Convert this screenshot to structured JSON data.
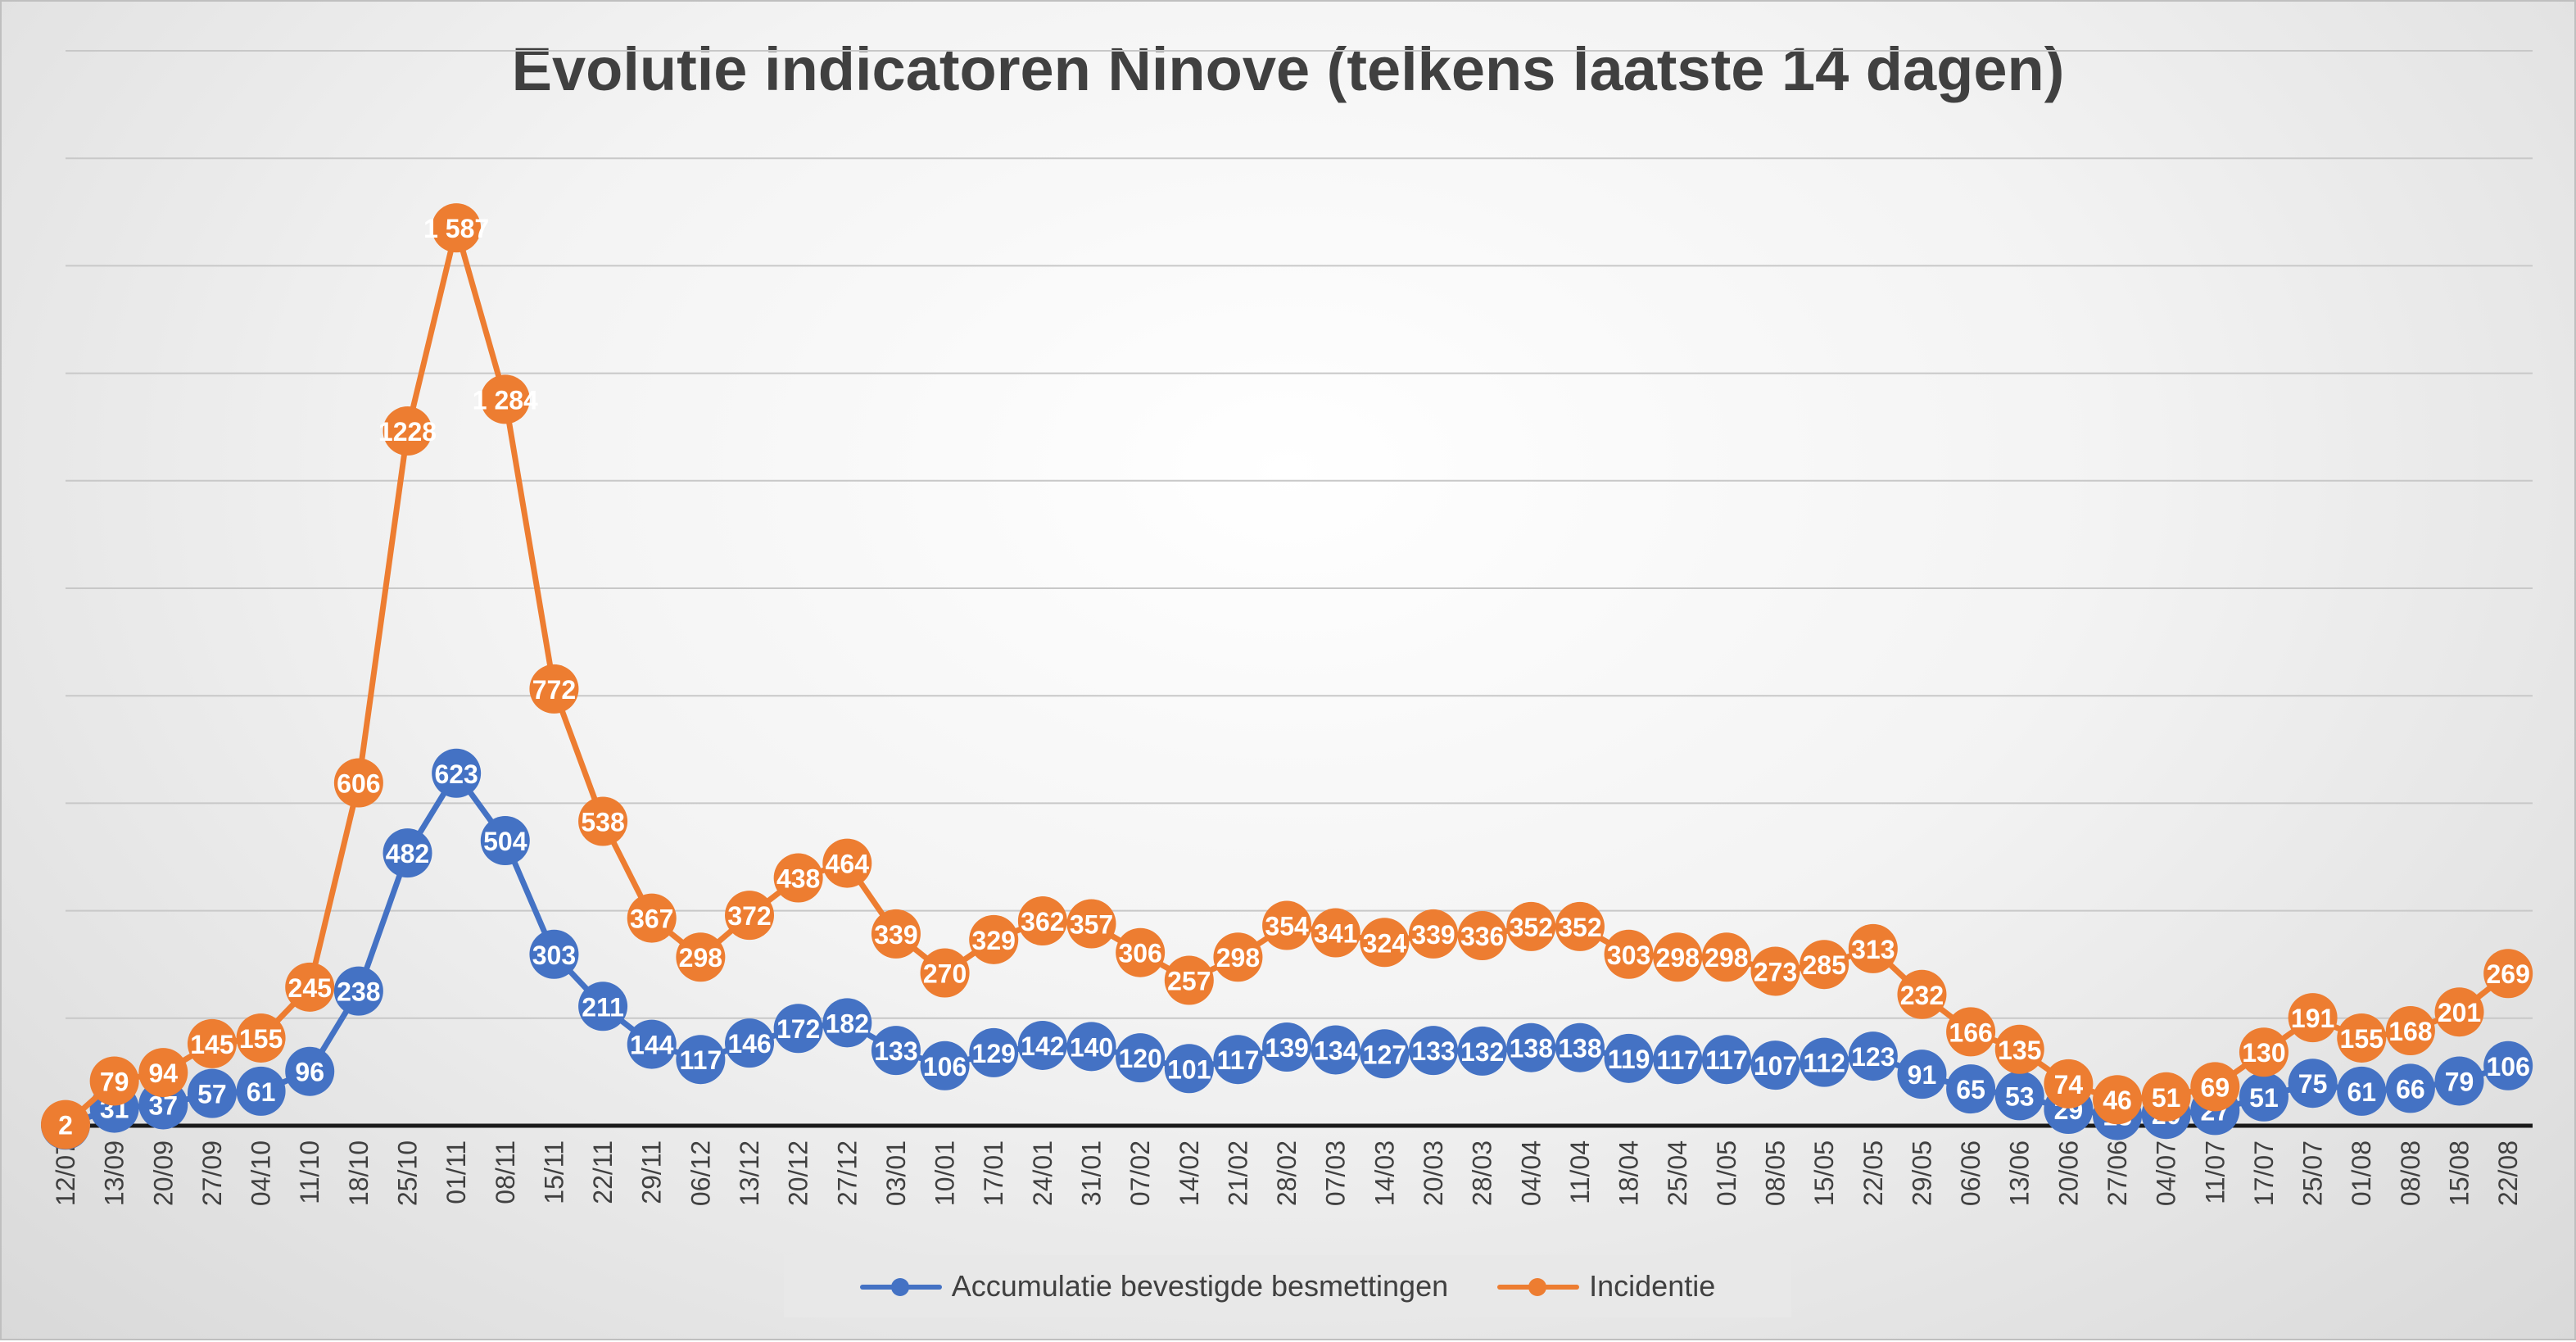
{
  "chart_data": {
    "type": "line",
    "title": "Evolutie indicatoren Ninove (telkens laatste 14 dagen)",
    "xlabel": "",
    "ylabel": "",
    "ylim": [
      0,
      1900
    ],
    "grid": true,
    "legend": "bottom",
    "categories": [
      "12/07",
      "13/09",
      "20/09",
      "27/09",
      "04/10",
      "11/10",
      "18/10",
      "25/10",
      "01/11",
      "08/11",
      "15/11",
      "22/11",
      "29/11",
      "06/12",
      "13/12",
      "20/12",
      "27/12",
      "03/01",
      "10/01",
      "17/01",
      "24/01",
      "31/01",
      "07/02",
      "14/02",
      "21/02",
      "28/02",
      "07/03",
      "14/03",
      "20/03",
      "28/03",
      "04/04",
      "11/04",
      "18/04",
      "25/04",
      "01/05",
      "08/05",
      "15/05",
      "22/05",
      "29/05",
      "06/06",
      "13/06",
      "20/06",
      "27/06",
      "04/07",
      "11/07",
      "17/07",
      "25/07",
      "01/08",
      "08/08",
      "15/08",
      "22/08"
    ],
    "series": [
      {
        "name": "Accumulatie bevestigde besmettingen",
        "color": "#4472C4",
        "values": [
          1,
          31,
          37,
          57,
          61,
          96,
          238,
          482,
          623,
          504,
          303,
          211,
          144,
          117,
          146,
          172,
          182,
          133,
          106,
          129,
          142,
          140,
          120,
          101,
          117,
          139,
          134,
          127,
          133,
          132,
          138,
          138,
          119,
          117,
          117,
          107,
          112,
          123,
          91,
          65,
          53,
          29,
          18,
          20,
          27,
          51,
          75,
          61,
          66,
          79,
          106
        ],
        "labels": [
          "1",
          "31",
          "37",
          "57",
          "61",
          "96",
          "238",
          "482",
          "623",
          "504",
          "303",
          "211",
          "144",
          "117",
          "146",
          "172",
          "182",
          "133",
          "106",
          "129",
          "142",
          "140",
          "120",
          "101",
          "117",
          "139",
          "134",
          "127",
          "133",
          "132",
          "138",
          "138",
          "119",
          "117",
          "117",
          "107",
          "112",
          "123",
          "91",
          "65",
          "53",
          "29",
          "18",
          "20",
          "27",
          "51",
          "75",
          "61",
          "66",
          "79",
          "106"
        ]
      },
      {
        "name": "Incidentie",
        "color": "#ED7D31",
        "values": [
          2,
          79,
          94,
          145,
          155,
          245,
          606,
          1228,
          1587,
          1284,
          772,
          538,
          367,
          298,
          372,
          438,
          464,
          339,
          270,
          329,
          362,
          357,
          306,
          257,
          298,
          354,
          341,
          324,
          339,
          336,
          352,
          352,
          303,
          298,
          298,
          273,
          285,
          313,
          232,
          166,
          135,
          74,
          46,
          51,
          69,
          130,
          191,
          155,
          168,
          201,
          269
        ],
        "labels": [
          "2",
          "79",
          "94",
          "145",
          "155",
          "245",
          "606",
          "1228",
          "1 587",
          "1 284",
          "772",
          "538",
          "367",
          "298",
          "372",
          "438",
          "464",
          "339",
          "270",
          "329",
          "362",
          "357",
          "306",
          "257",
          "298",
          "354",
          "341",
          "324",
          "339",
          "336",
          "352",
          "352",
          "303",
          "298",
          "298",
          "273",
          "285",
          "313",
          "232",
          "166",
          "135",
          "74",
          "46",
          "51",
          "69",
          "130",
          "191",
          "155",
          "168",
          "201",
          "269"
        ]
      }
    ]
  }
}
